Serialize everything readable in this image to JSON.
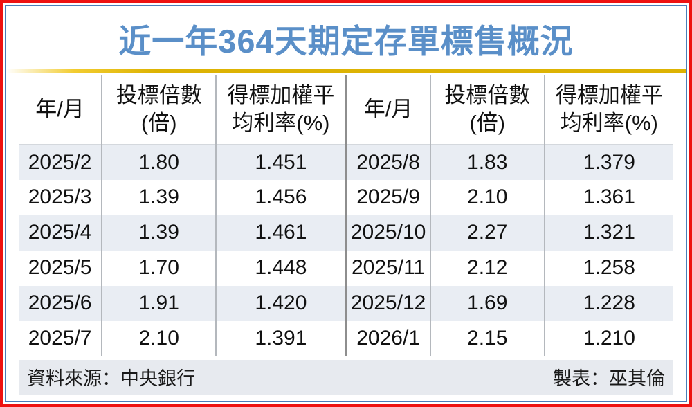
{
  "title": "近一年364天期定存單標售概況",
  "table": {
    "headers": {
      "month": "年/月",
      "bid_multiple_line1": "投標倍數",
      "bid_multiple_line2": "(倍)",
      "rate_line1": "得標加權平",
      "rate_line2": "均利率(%)"
    },
    "left_rows": [
      {
        "month": "2025/2",
        "multiple": "1.80",
        "rate": "1.451"
      },
      {
        "month": "2025/3",
        "multiple": "1.39",
        "rate": "1.456"
      },
      {
        "month": "2025/4",
        "multiple": "1.39",
        "rate": "1.461"
      },
      {
        "month": "2025/5",
        "multiple": "1.70",
        "rate": "1.448"
      },
      {
        "month": "2025/6",
        "multiple": "1.91",
        "rate": "1.420"
      },
      {
        "month": "2025/7",
        "multiple": "2.10",
        "rate": "1.391"
      }
    ],
    "right_rows": [
      {
        "month": "2025/8",
        "multiple": "1.83",
        "rate": "1.379"
      },
      {
        "month": "2025/9",
        "multiple": "2.10",
        "rate": "1.361"
      },
      {
        "month": "2025/10",
        "multiple": "2.27",
        "rate": "1.321"
      },
      {
        "month": "2025/11",
        "multiple": "2.12",
        "rate": "1.258"
      },
      {
        "month": "2025/12",
        "multiple": "1.69",
        "rate": "1.228"
      },
      {
        "month": "2026/1",
        "multiple": "2.15",
        "rate": "1.210"
      }
    ]
  },
  "footer": {
    "source": "資料來源：中央銀行",
    "credit": "製表：巫其倫"
  },
  "colors": {
    "outer_border": "#ee1111",
    "inner_border": "#4a7db8",
    "title_blue": "#5a8fc8",
    "gold_rule": "#ddb303",
    "row_stripe": "#e9edf3",
    "footer_bg": "#e7eaef",
    "mid_divider": "#8e8e8e",
    "column_divider": "#b4b8bd"
  },
  "chart_data": {
    "type": "table",
    "title": "近一年364天期定存單標售概況",
    "columns": [
      "年/月",
      "投標倍數(倍)",
      "得標加權平均利率(%)"
    ],
    "rows": [
      [
        "2025/2",
        1.8,
        1.451
      ],
      [
        "2025/3",
        1.39,
        1.456
      ],
      [
        "2025/4",
        1.39,
        1.461
      ],
      [
        "2025/5",
        1.7,
        1.448
      ],
      [
        "2025/6",
        1.91,
        1.42
      ],
      [
        "2025/7",
        2.1,
        1.391
      ],
      [
        "2025/8",
        1.83,
        1.379
      ],
      [
        "2025/9",
        2.1,
        1.361
      ],
      [
        "2025/10",
        2.27,
        1.321
      ],
      [
        "2025/11",
        2.12,
        1.258
      ],
      [
        "2025/12",
        1.69,
        1.228
      ],
      [
        "2026/1",
        2.15,
        1.21
      ]
    ],
    "source": "中央銀行",
    "table_by": "巫其倫"
  }
}
